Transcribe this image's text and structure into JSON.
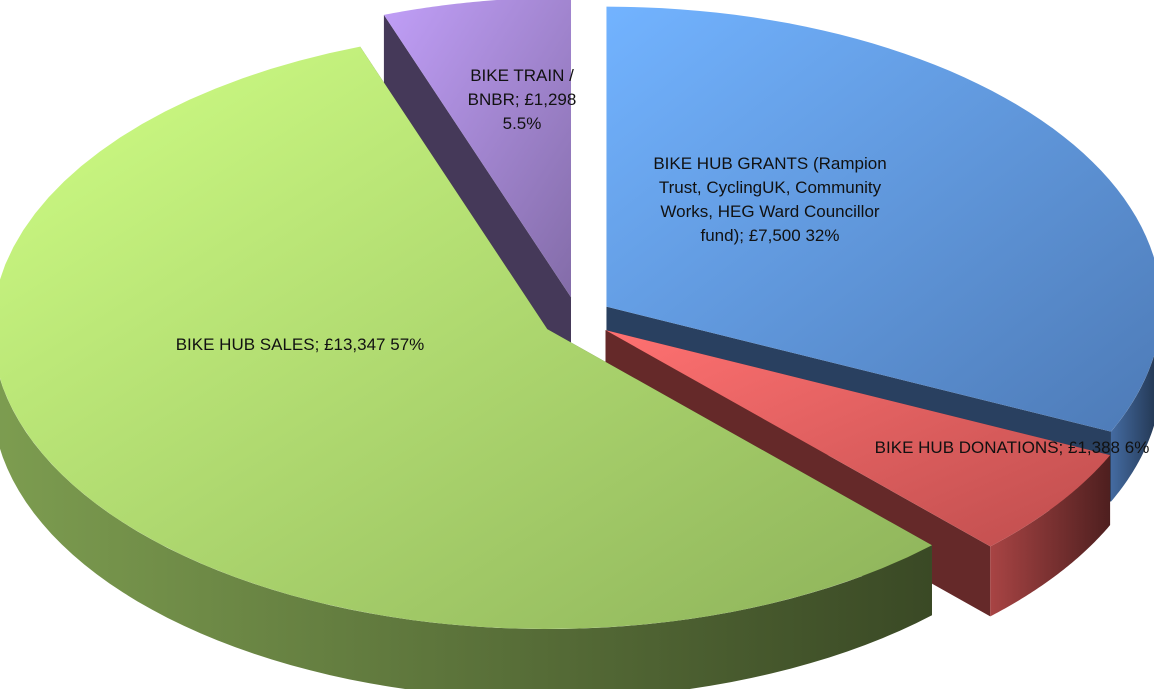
{
  "chart_data": {
    "type": "pie",
    "categories": [
      "BIKE HUB GRANTS (Rampion Trust, CyclingUK, Community Works, HEG Ward Councillor fund);",
      "BIKE HUB DONATIONS;",
      "BIKE HUB SALES;",
      "BIKE TRAIN / BNBR;"
    ],
    "amounts": [
      "£7,500",
      "£1,388",
      "£13,347",
      "£1,298"
    ],
    "values": [
      32,
      6,
      57,
      5.5
    ],
    "value_labels": [
      "32%",
      "6%",
      "57%",
      "5.5%"
    ],
    "colors": [
      "#5b8fd6",
      "#e05a5a",
      "#a6d16a",
      "#9a7fc6"
    ]
  }
}
